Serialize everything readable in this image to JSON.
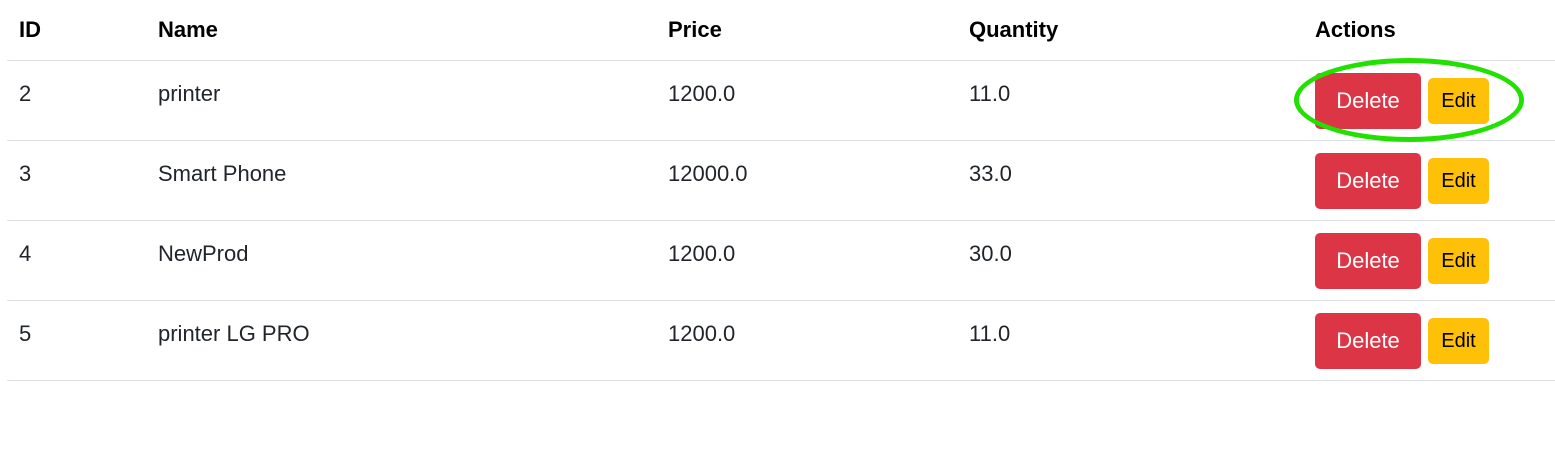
{
  "table": {
    "headers": {
      "id": "ID",
      "name": "Name",
      "price": "Price",
      "quantity": "Quantity",
      "actions": "Actions"
    },
    "rows": [
      {
        "id": "2",
        "name": "printer",
        "price": "1200.0",
        "quantity": "11.0",
        "delete_label": "Delete",
        "edit_label": "Edit"
      },
      {
        "id": "3",
        "name": "Smart Phone",
        "price": "12000.0",
        "quantity": "33.0",
        "delete_label": "Delete",
        "edit_label": "Edit"
      },
      {
        "id": "4",
        "name": "NewProd",
        "price": "1200.0",
        "quantity": "30.0",
        "delete_label": "Delete",
        "edit_label": "Edit"
      },
      {
        "id": "5",
        "name": "printer LG PRO",
        "price": "1200.0",
        "quantity": "11.0",
        "delete_label": "Delete",
        "edit_label": "Edit"
      }
    ]
  },
  "colors": {
    "delete": "#dc3545",
    "edit": "#ffc107",
    "annotation": "#22e000"
  },
  "annotation": {
    "shape": "ellipse",
    "target_row": 0
  }
}
